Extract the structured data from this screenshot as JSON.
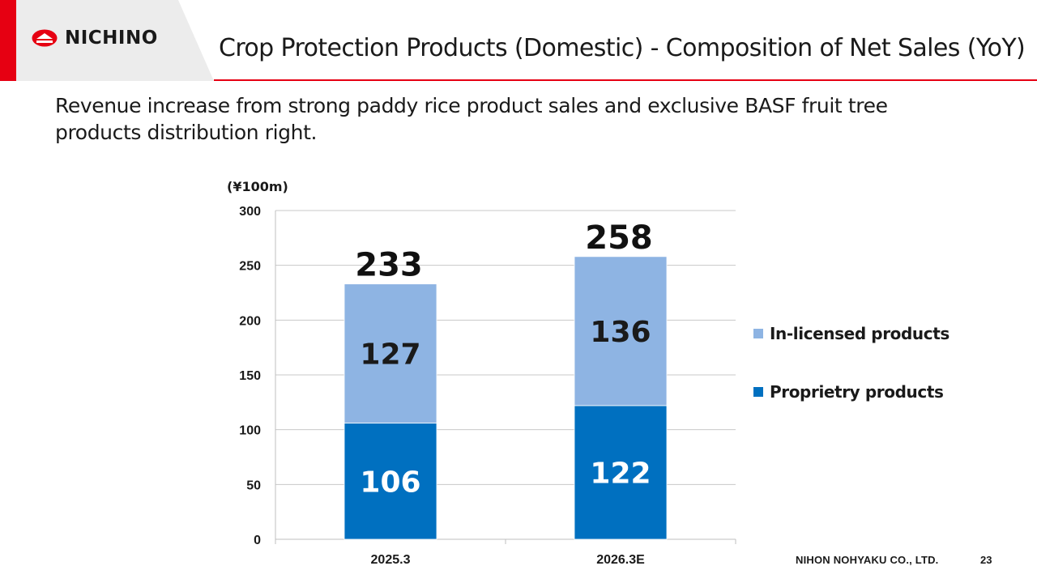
{
  "brand": {
    "name": "NICHINO",
    "accent_color": "#e60012",
    "icon": "nichino-logo-icon"
  },
  "header": {
    "title": "Crop Protection Products (Domestic) - Composition of Net Sales (YoY)"
  },
  "subtitle": "Revenue increase from strong paddy rice product sales and exclusive BASF fruit tree products distribution right.",
  "chart_data": {
    "type": "bar",
    "stacked": true,
    "unit": "(¥100m)",
    "categories": [
      "2025.3",
      "2026.3E"
    ],
    "series": [
      {
        "name": "Proprietry products",
        "values": [
          106,
          122
        ],
        "color": "#0070c0"
      },
      {
        "name": "In-licensed products",
        "values": [
          127,
          136
        ],
        "color": "#8eb4e3"
      }
    ],
    "totals": [
      233,
      258
    ],
    "ylim": [
      0,
      300
    ],
    "yticks": [
      0,
      50,
      100,
      150,
      200,
      250,
      300
    ],
    "grid": true,
    "legend_position": "right"
  },
  "footer": {
    "company": "NIHON NOHYAKU CO., LTD.",
    "page": "23"
  }
}
